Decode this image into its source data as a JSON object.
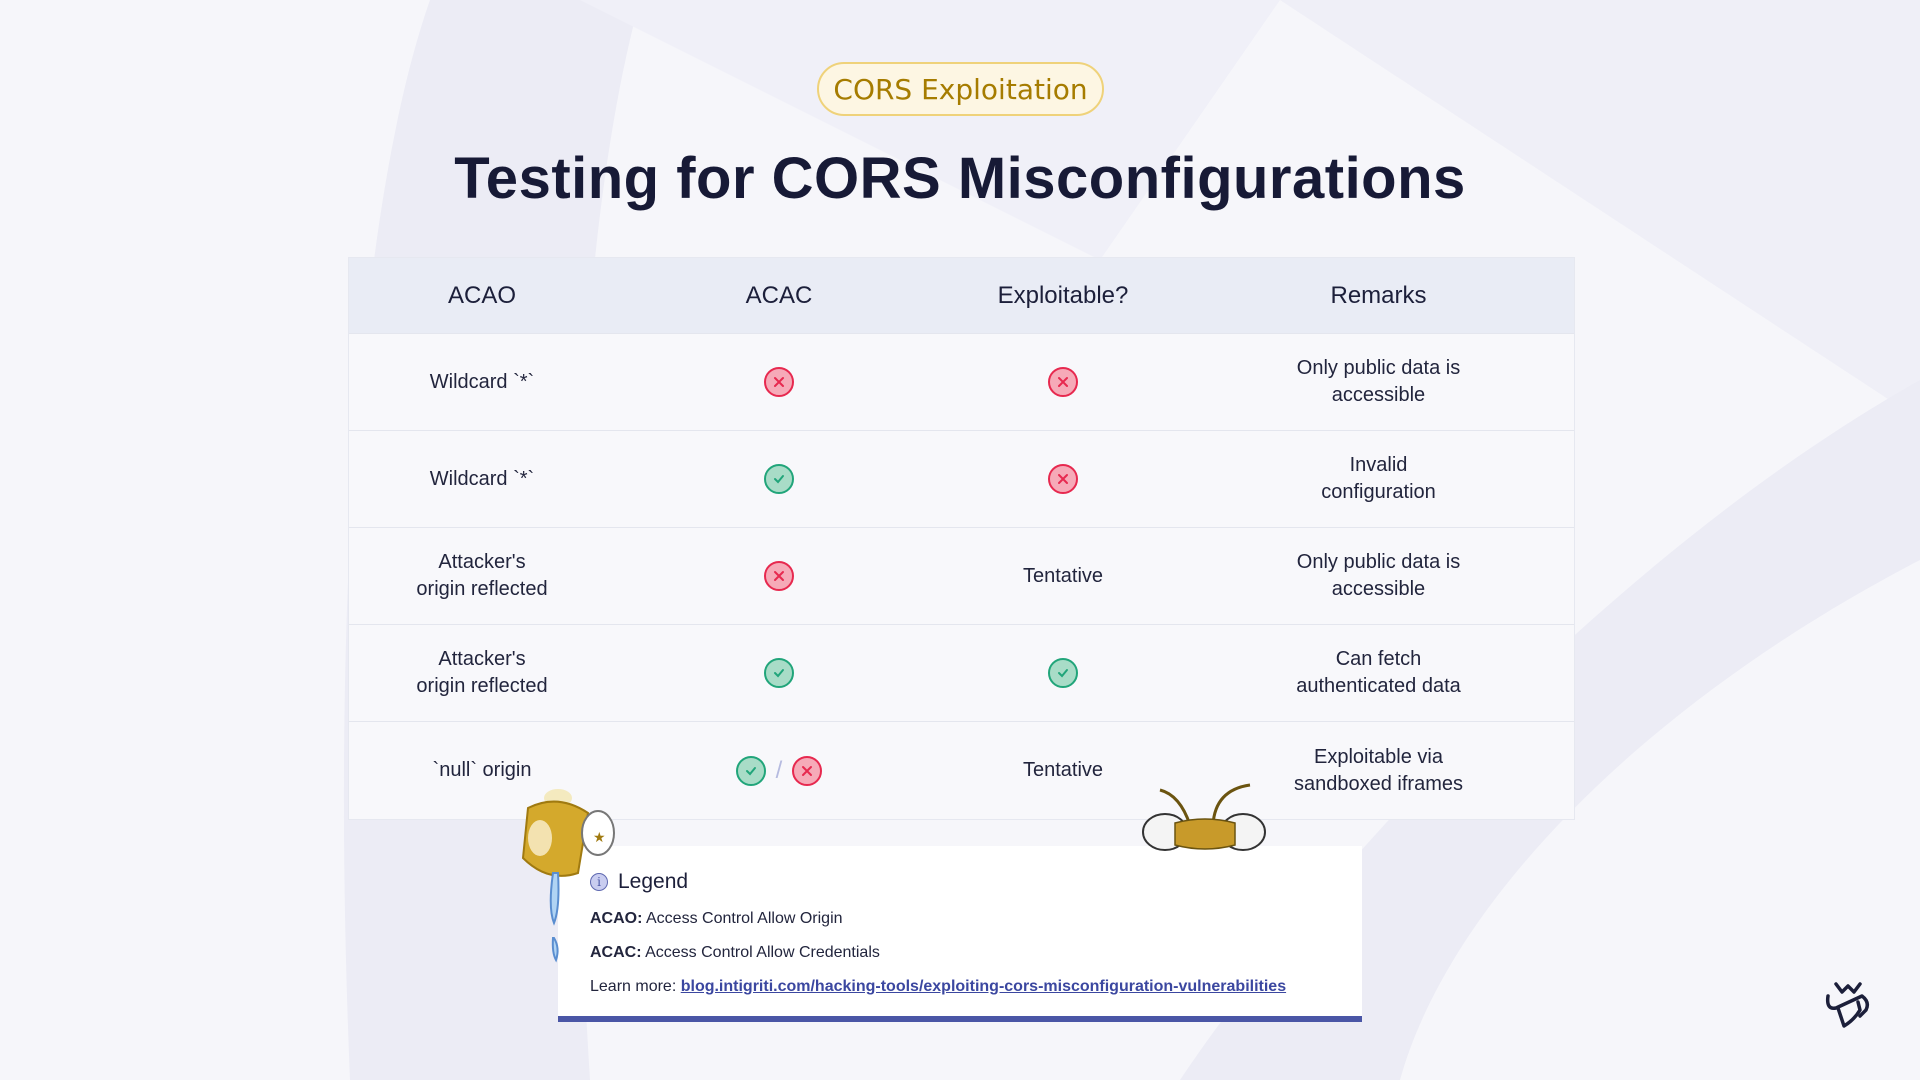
{
  "badge": "CORS Exploitation",
  "title": "Testing for CORS Misconfigurations",
  "table": {
    "headers": [
      "ACAO",
      "ACAC",
      "Exploitable?",
      "Remarks"
    ],
    "rows": [
      {
        "acao": "Wildcard `*`",
        "acac": "cross",
        "exploitable": {
          "icon": "cross"
        },
        "remarks": "Only public data is\naccessible"
      },
      {
        "acao": "Wildcard `*`",
        "acac": "check",
        "exploitable": {
          "icon": "cross"
        },
        "remarks": "Invalid\nconfiguration"
      },
      {
        "acao": "Attacker's\norigin reflected",
        "acac": "cross",
        "exploitable": {
          "text": "Tentative"
        },
        "remarks": "Only public data is\naccessible"
      },
      {
        "acao": "Attacker's\norigin reflected",
        "acac": "check",
        "exploitable": {
          "icon": "check"
        },
        "remarks": "Can fetch\nauthenticated data"
      },
      {
        "acao": "`null` origin",
        "acac": "check/cross",
        "exploitable": {
          "text": "Tentative"
        },
        "remarks": "Exploitable via\nsandboxed iframes"
      }
    ]
  },
  "legend": {
    "title": "Legend",
    "acao_term": "ACAO:",
    "acao_def": "Access Control Allow Origin",
    "acac_term": "ACAC:",
    "acac_def": "Access Control Allow Credentials",
    "learn_more": "Learn more:",
    "link": "blog.intigriti.com/hacking-tools/exploiting-cors-misconfiguration-vulnerabilities"
  },
  "colors": {
    "check": "#21a57a",
    "cross": "#e7294f",
    "accent": "#4a56a6",
    "badge": "#a67c00"
  }
}
